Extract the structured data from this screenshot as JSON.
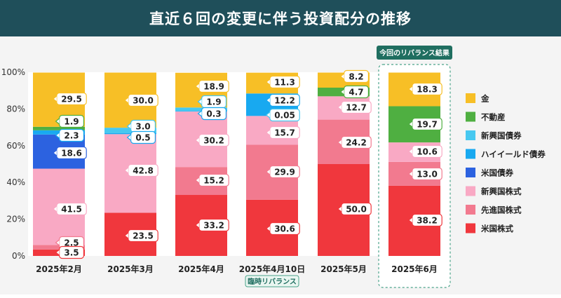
{
  "header": {
    "title": "直近６回の変更に伴う投資配分の推移"
  },
  "annotations": {
    "latest_badge": "今回のリバランス結果",
    "temporary_badge": "臨時リバランス"
  },
  "colors": {
    "header_bg": "#1f4f5a",
    "badge_bg": "#1f6e60",
    "highlight_border": "#4aa38a"
  },
  "chart_data": {
    "type": "bar",
    "stacked": true,
    "title": "直近６回の変更に伴う投資配分の推移",
    "xlabel": "",
    "ylabel": "",
    "ylim": [
      0,
      100
    ],
    "yticks": [
      "0%",
      "20%",
      "40%",
      "60%",
      "80%",
      "100%"
    ],
    "grid": false,
    "legend_position": "right",
    "categories": [
      "2025年2月",
      "2025年3月",
      "2025年4月",
      "2025年4月10日",
      "2025年5月",
      "2025年6月"
    ],
    "series": [
      {
        "name": "米国株式",
        "color": "#f0373d",
        "values": [
          3.5,
          23.5,
          33.2,
          30.6,
          50.0,
          38.2
        ]
      },
      {
        "name": "先進国株式",
        "color": "#f27a8f",
        "values": [
          2.5,
          0,
          15.2,
          29.9,
          24.2,
          13.0
        ]
      },
      {
        "name": "新興国株式",
        "color": "#f9a9c4",
        "values": [
          41.5,
          42.8,
          30.2,
          15.7,
          12.7,
          10.6
        ]
      },
      {
        "name": "米国債券",
        "color": "#2c62e0",
        "values": [
          18.6,
          0,
          0,
          0,
          0,
          0
        ]
      },
      {
        "name": "ハイイールド債券",
        "color": "#18a9f0",
        "values": [
          2.3,
          0.5,
          0.3,
          12.2,
          0,
          0
        ]
      },
      {
        "name": "新興国債券",
        "color": "#47c8f0",
        "values": [
          0,
          3.0,
          1.9,
          0.05,
          0,
          0
        ]
      },
      {
        "name": "不動産",
        "color": "#4faf41",
        "values": [
          1.9,
          0,
          0,
          0,
          4.7,
          19.7
        ]
      },
      {
        "name": "金",
        "color": "#f7bf26",
        "values": [
          29.5,
          30.0,
          18.9,
          11.3,
          8.2,
          18.3
        ]
      }
    ],
    "data_labels": [
      [
        "3.5",
        "2.5",
        "41.5",
        "18.6",
        "2.3",
        "",
        "1.9",
        "29.5"
      ],
      [
        "23.5",
        "",
        "42.8",
        "",
        "0.5",
        "3.0",
        "",
        "30.0"
      ],
      [
        "33.2",
        "15.2",
        "30.2",
        "",
        "0.3",
        "1.9",
        "",
        "18.9"
      ],
      [
        "30.6",
        "29.9",
        "15.7",
        "",
        "12.2",
        "0.05",
        "",
        "11.3"
      ],
      [
        "50.0",
        "24.2",
        "12.7",
        "",
        "",
        "",
        "4.7",
        "8.2"
      ],
      [
        "38.2",
        "13.0",
        "10.6",
        "",
        "",
        "",
        "19.7",
        "18.3"
      ]
    ]
  }
}
